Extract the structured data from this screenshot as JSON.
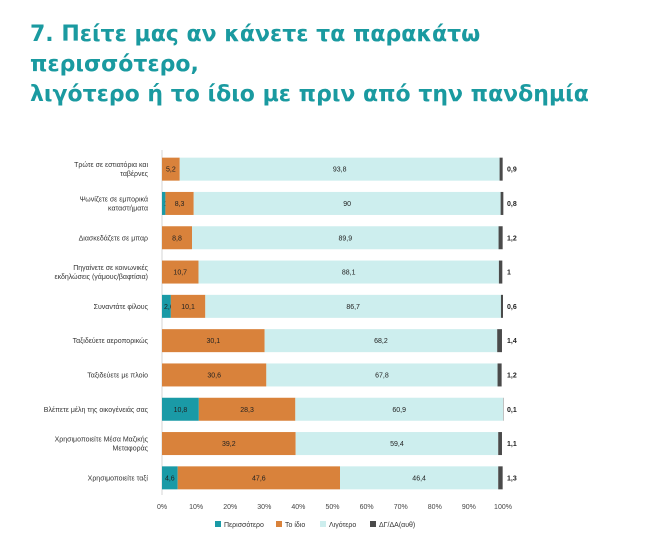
{
  "title": {
    "line1": "7. Πείτε μας αν κάνετε τα παρακάτω περισσότερο,",
    "line2": "λιγότερο ή το ίδιο με πριν από την πανδημία"
  },
  "chart_data": {
    "type": "bar",
    "orientation": "horizontal",
    "stacked": true,
    "categories": [
      "Τρώτε σε εστιατόρια και ταβέρνες",
      "Ψωνίζετε σε εμπορικά καταστήματα",
      "Διασκεδάζετε σε μπαρ",
      "Πηγαίνετε σε κοινωνικές εκδηλώσεις (γάμους/βαφτίσια)",
      "Συναντάτε φίλους",
      "Ταξιδεύετε αεροπορικώς",
      "Ταξιδεύετε με πλοίο",
      "Βλέπετε μέλη της οικογένειάς σας",
      "Χρησιμοποιείτε Μέσα Μαζικής Μεταφοράς",
      "Χρησιμοποιείτε ταξί"
    ],
    "category_lines": [
      [
        "Τρώτε σε εστιατόρια και",
        "ταβέρνες"
      ],
      [
        "Ψωνίζετε σε εμπορικά",
        "καταστήματα"
      ],
      [
        "Διασκεδάζετε σε μπαρ"
      ],
      [
        "Πηγαίνετε σε κοινωνικές",
        "εκδηλώσεις (γάμους/βαφτίσια)"
      ],
      [
        "Συναντάτε φίλους"
      ],
      [
        "Ταξιδεύετε αεροπορικώς"
      ],
      [
        "Ταξιδεύετε με πλοίο"
      ],
      [
        "Βλέπετε μέλη της οικογένειάς σας"
      ],
      [
        "Χρησιμοποιείτε Μέσα Μαζικής",
        "Μεταφοράς"
      ],
      [
        "Χρησιμοποιείτε ταξί"
      ]
    ],
    "series": [
      {
        "name": "Περισσότερο",
        "color": "#1a9aa6",
        "values": [
          0,
          1,
          0,
          0,
          2.6,
          0,
          0,
          10.8,
          0,
          4.6
        ],
        "labels": [
          "",
          "1",
          "",
          "",
          "2,6",
          "",
          "",
          "10,8",
          "",
          "4,6"
        ]
      },
      {
        "name": "Το ίδιο",
        "color": "#d9823b",
        "values": [
          5.2,
          8.3,
          8.8,
          10.7,
          10.1,
          30.1,
          30.6,
          28.3,
          39.2,
          47.6
        ],
        "labels": [
          "5,2",
          "8,3",
          "8,8",
          "10,7",
          "10,1",
          "30,1",
          "30,6",
          "28,3",
          "39,2",
          "47,6"
        ]
      },
      {
        "name": "Λιγότερο",
        "color": "#cdeeee",
        "values": [
          93.8,
          90,
          89.9,
          88.1,
          86.7,
          68.2,
          67.8,
          60.9,
          59.4,
          46.4
        ],
        "labels": [
          "93,8",
          "90",
          "89,9",
          "88,1",
          "86,7",
          "68,2",
          "67,8",
          "60,9",
          "59,4",
          "46,4"
        ]
      },
      {
        "name": "ΔΓ/ΔΑ(αυθ)",
        "color": "#4a4a4a",
        "values": [
          0.9,
          0.8,
          1.2,
          1,
          0.6,
          1.4,
          1.2,
          0.1,
          1.1,
          1.3
        ],
        "labels": [
          "0,9",
          "0,8",
          "1,2",
          "1",
          "0,6",
          "1,4",
          "1,2",
          "0,1",
          "1,1",
          "1,3"
        ]
      }
    ],
    "x_ticks": [
      "0%",
      "10%",
      "20%",
      "30%",
      "40%",
      "50%",
      "60%",
      "70%",
      "80%",
      "90%",
      "100%"
    ],
    "xlim": [
      0,
      100
    ],
    "grid": false,
    "legend_position": "bottom"
  }
}
